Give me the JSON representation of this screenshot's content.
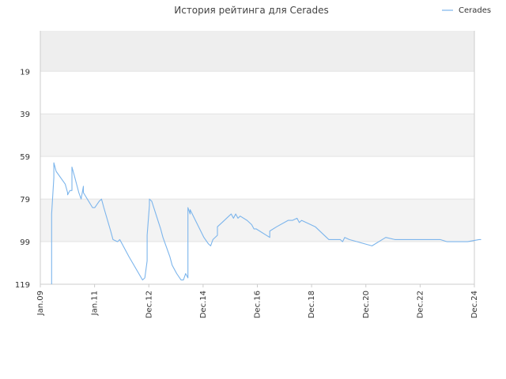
{
  "chart_data": {
    "type": "line",
    "title": "История рейтинга для Cerades",
    "xlabel": "",
    "ylabel": "",
    "ylim": [
      119,
      0
    ],
    "y_ticks": [
      19,
      39,
      59,
      79,
      99,
      119
    ],
    "x_ticks": [
      "Jan.09",
      "Jan.11",
      "Dec.12",
      "Dec.14",
      "Dec.16",
      "Dec.18",
      "Dec.20",
      "Dec.22",
      "Dec.24"
    ],
    "grid": true,
    "legend_position": "top-right",
    "colors": {
      "line": "#7cb5ec",
      "band_alt": "#eeeeee",
      "band_light": "#f3f3f3",
      "axis": "#cccccc"
    },
    "series": [
      {
        "name": "Cerades",
        "points": [
          [
            "2009-06",
            119
          ],
          [
            "2009-06",
            86
          ],
          [
            "2009-07",
            69
          ],
          [
            "2009-07",
            62
          ],
          [
            "2009-08",
            66
          ],
          [
            "2009-12",
            72
          ],
          [
            "2010-01",
            76
          ],
          [
            "2010-01",
            77
          ],
          [
            "2010-02",
            75
          ],
          [
            "2010-03",
            75
          ],
          [
            "2010-03",
            64
          ],
          [
            "2010-04",
            68
          ],
          [
            "2010-06",
            76
          ],
          [
            "2010-07",
            79
          ],
          [
            "2010-08",
            73
          ],
          [
            "2010-08",
            76
          ],
          [
            "2010-12",
            83
          ],
          [
            "2011-01",
            83
          ],
          [
            "2011-03",
            80
          ],
          [
            "2011-04",
            79
          ],
          [
            "2011-05",
            83
          ],
          [
            "2011-08",
            94
          ],
          [
            "2011-09",
            98
          ],
          [
            "2011-11",
            99
          ],
          [
            "2011-12",
            98
          ],
          [
            "2012-04",
            106
          ],
          [
            "2012-10",
            117
          ],
          [
            "2012-11",
            116
          ],
          [
            "2012-12",
            108
          ],
          [
            "2012-12",
            96
          ],
          [
            "2013-01",
            82
          ],
          [
            "2013-01",
            79
          ],
          [
            "2013-02",
            80
          ],
          [
            "2013-06",
            93
          ],
          [
            "2013-07",
            97
          ],
          [
            "2013-10",
            106
          ],
          [
            "2013-11",
            110
          ],
          [
            "2014-01",
            114
          ],
          [
            "2014-03",
            117
          ],
          [
            "2014-04",
            117
          ],
          [
            "2014-05",
            114
          ],
          [
            "2014-06",
            116
          ],
          [
            "2014-06",
            83
          ],
          [
            "2014-07",
            86
          ],
          [
            "2014-07",
            84
          ],
          [
            "2015-01",
            97
          ],
          [
            "2015-03",
            100
          ],
          [
            "2015-04",
            101
          ],
          [
            "2015-05",
            98
          ],
          [
            "2015-07",
            96
          ],
          [
            "2015-07",
            92
          ],
          [
            "2015-09",
            90
          ],
          [
            "2015-12",
            87
          ],
          [
            "2016-01",
            86
          ],
          [
            "2016-02",
            88
          ],
          [
            "2016-03",
            86
          ],
          [
            "2016-04",
            88
          ],
          [
            "2016-05",
            87
          ],
          [
            "2016-08",
            89
          ],
          [
            "2016-10",
            91
          ],
          [
            "2016-11",
            93
          ],
          [
            "2016-12",
            93
          ],
          [
            "2017-06",
            97
          ],
          [
            "2017-06",
            94
          ],
          [
            "2017-09",
            92
          ],
          [
            "2018-02",
            89
          ],
          [
            "2018-04",
            89
          ],
          [
            "2018-06",
            88
          ],
          [
            "2018-07",
            90
          ],
          [
            "2018-08",
            89
          ],
          [
            "2018-12",
            91
          ],
          [
            "2019-02",
            92
          ],
          [
            "2019-07",
            97
          ],
          [
            "2019-08",
            98
          ],
          [
            "2019-11",
            98
          ],
          [
            "2020-01",
            98
          ],
          [
            "2020-02",
            99
          ],
          [
            "2020-03",
            97
          ],
          [
            "2020-05",
            98
          ],
          [
            "2021-03",
            101
          ],
          [
            "2021-09",
            97
          ],
          [
            "2022-01",
            98
          ],
          [
            "2022-06",
            98
          ],
          [
            "2023-01",
            98
          ],
          [
            "2023-05",
            98
          ],
          [
            "2023-09",
            98
          ],
          [
            "2023-12",
            99
          ],
          [
            "2024-01",
            99
          ],
          [
            "2024-09",
            99
          ],
          [
            "2025-02",
            98
          ],
          [
            "2025-03",
            98
          ]
        ]
      }
    ]
  }
}
